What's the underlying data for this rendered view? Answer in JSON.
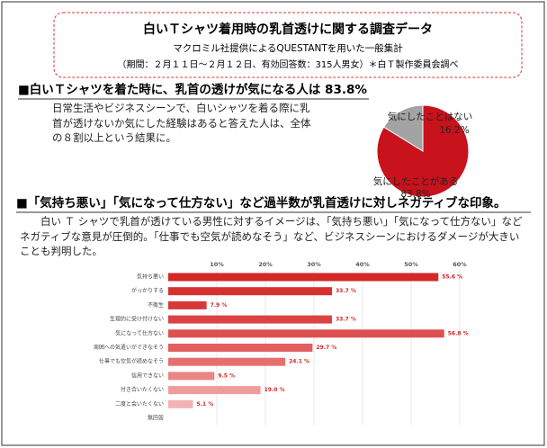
{
  "header": {
    "title": "白いＴシャツ着用時の乳首透けに関する調査データ",
    "subtitle": "マクロミル社提供によるQUESTANTを用いた一般集計",
    "note": "（期間：２月１１日～２月１２日、有効回答数：315人男女）＊白Ｔ製作委員会調べ"
  },
  "sections": [
    {
      "heading": "■白いＴシャツを着た時に、乳首の透けが気になる人は 83.8%",
      "body": "日常生活やビジネスシーンで、白いシャツを着る際に乳首が透けないか気にした経験はあると答えた人は、全体の８割以上という結果に。"
    },
    {
      "heading": "■「気持ち悪い」「気になって仕方ない」など過半数が乳首透けに対しネガティブな印象。",
      "body": "白い Ｔ シャツで乳首が透けている男性に対するイメージは、「気持ち悪い」「気になって仕方ない」などネガティブな意見が圧倒的。「仕事でも空気が読めなそう」など、ビジネスシーンにおけるダメージが大きいことも判明した。"
    }
  ],
  "chart_data": [
    {
      "type": "pie",
      "categories": [
        "気にしたことがある",
        "気にしたことはない"
      ],
      "values": [
        83.8,
        16.2
      ],
      "value_labels": [
        "83.8%",
        "16.2%"
      ],
      "colors": [
        "#c8121c",
        "#a3a3a3"
      ]
    },
    {
      "type": "bar",
      "orientation": "horizontal",
      "categories": [
        "気持ち悪い",
        "がっかりする",
        "不衛生",
        "生理的に受け付けない",
        "気になって仕方ない",
        "周囲への気遣いができなそう",
        "仕事でも空気が読めなそう",
        "信用できない",
        "付き合いたくない",
        "二度と会いたくない",
        "無回答"
      ],
      "values": [
        55.6,
        33.7,
        7.9,
        33.7,
        56.8,
        29.7,
        24.1,
        9.5,
        19.0,
        5.1,
        null
      ],
      "value_labels": [
        "55.6 %",
        "33.7 %",
        "7.9 %",
        "33.7 %",
        "56.8 %",
        "29.7 %",
        "24.1 %",
        "9.5 %",
        "19.0 %",
        "5.1 %",
        null
      ],
      "colors": [
        "#d42727",
        "#d73030",
        "#d93838",
        "#db4242",
        "#de5050",
        "#e15f5f",
        "#e56f6f",
        "#e98585",
        "#ee9c9c",
        "#f2b3b3",
        "#f5c5c5"
      ],
      "xlim": [
        0,
        60
      ],
      "xticks": [
        {
          "value": 10,
          "label": "10%"
        },
        {
          "value": 20,
          "label": "20%"
        },
        {
          "value": 30,
          "label": "30%"
        },
        {
          "value": 40,
          "label": "40%"
        },
        {
          "value": 50,
          "label": "50%"
        },
        {
          "value": 60,
          "label": "60%"
        }
      ],
      "grid": true
    }
  ]
}
